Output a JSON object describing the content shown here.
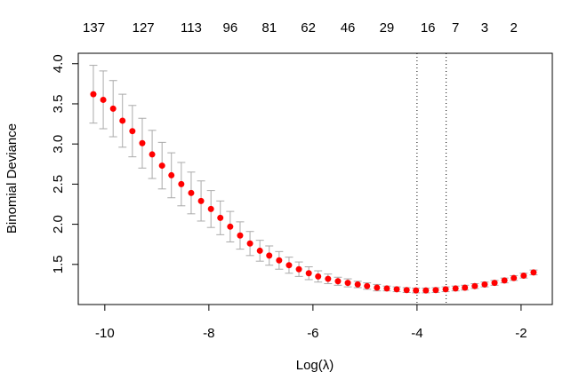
{
  "chart_data": {
    "type": "errorbar",
    "xlabel": "Log(λ)",
    "ylabel": "Binomial Deviance",
    "x": [
      -10.22,
      -10.03,
      -9.84,
      -9.66,
      -9.47,
      -9.28,
      -9.09,
      -8.9,
      -8.72,
      -8.53,
      -8.34,
      -8.15,
      -7.96,
      -7.78,
      -7.59,
      -7.4,
      -7.21,
      -7.02,
      -6.84,
      -6.65,
      -6.46,
      -6.27,
      -6.08,
      -5.9,
      -5.71,
      -5.52,
      -5.33,
      -5.14,
      -4.96,
      -4.77,
      -4.58,
      -4.39,
      -4.2,
      -4.02,
      -3.83,
      -3.64,
      -3.45,
      -3.26,
      -3.08,
      -2.89,
      -2.7,
      -2.51,
      -2.32,
      -2.14,
      -1.95,
      -1.76
    ],
    "series": [
      {
        "color": "#ff0000",
        "error_color": "#aaaaaa",
        "values": [
          3.62,
          3.55,
          3.44,
          3.29,
          3.16,
          3.01,
          2.87,
          2.73,
          2.61,
          2.5,
          2.39,
          2.29,
          2.19,
          2.08,
          1.97,
          1.86,
          1.76,
          1.67,
          1.61,
          1.55,
          1.49,
          1.44,
          1.39,
          1.35,
          1.32,
          1.29,
          1.27,
          1.25,
          1.23,
          1.21,
          1.2,
          1.19,
          1.18,
          1.175,
          1.175,
          1.18,
          1.19,
          1.2,
          1.21,
          1.23,
          1.25,
          1.27,
          1.3,
          1.33,
          1.36,
          1.4
        ],
        "errors": [
          0.36,
          0.36,
          0.35,
          0.33,
          0.32,
          0.31,
          0.3,
          0.29,
          0.28,
          0.27,
          0.26,
          0.25,
          0.23,
          0.21,
          0.19,
          0.17,
          0.15,
          0.13,
          0.12,
          0.11,
          0.1,
          0.09,
          0.08,
          0.07,
          0.06,
          0.05,
          0.05,
          0.04,
          0.04,
          0.04,
          0.03,
          0.03,
          0.03,
          0.03,
          0.03,
          0.03,
          0.03,
          0.03,
          0.03,
          0.03,
          0.03,
          0.03,
          0.03,
          0.03,
          0.03,
          0.03
        ]
      }
    ],
    "xlim": [
      -10.51,
      -1.4
    ],
    "ylim": [
      1.0,
      4.13
    ],
    "xticks": [
      -10,
      -8,
      -6,
      -4,
      -2
    ],
    "yticks": [
      1.5,
      {
        "value": 2,
        "label": "2.0"
      },
      2.5,
      {
        "value": 3,
        "label": "3.0"
      },
      3.5,
      {
        "value": 4,
        "label": "4.0"
      }
    ],
    "x2ticks": [
      {
        "value": -10.21,
        "label": "137"
      },
      {
        "value": -9.26,
        "label": "127"
      },
      {
        "value": -8.34,
        "label": "113"
      },
      {
        "value": -7.59,
        "label": "96"
      },
      {
        "value": -6.84,
        "label": "81"
      },
      {
        "value": -6.09,
        "label": "62"
      },
      {
        "value": -5.33,
        "label": "46"
      },
      {
        "value": -4.58,
        "label": "29"
      },
      {
        "value": -3.79,
        "label": "16"
      },
      {
        "value": -3.26,
        "label": "7"
      },
      {
        "value": -2.7,
        "label": "3"
      },
      {
        "value": -2.14,
        "label": "2"
      }
    ],
    "vlines": [
      -4.0,
      -3.44
    ]
  }
}
